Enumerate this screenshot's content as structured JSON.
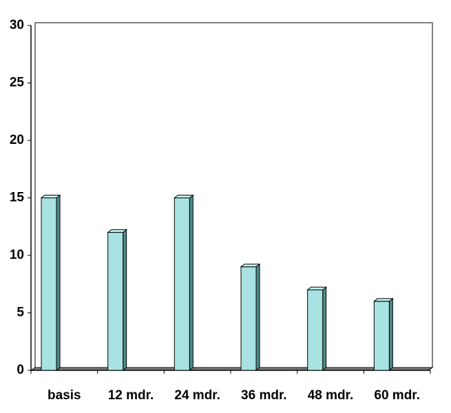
{
  "chart_data": {
    "type": "bar",
    "categories": [
      "basis",
      "12 mdr.",
      "24 mdr.",
      "36 mdr.",
      "48 mdr.",
      "60 mdr."
    ],
    "values": [
      15,
      12,
      15,
      9,
      7,
      6
    ],
    "color": "#a8e2e2",
    "ylim": [
      0,
      30
    ],
    "yticks": [
      0,
      5,
      10,
      15,
      20,
      25,
      30
    ],
    "grid": false
  }
}
